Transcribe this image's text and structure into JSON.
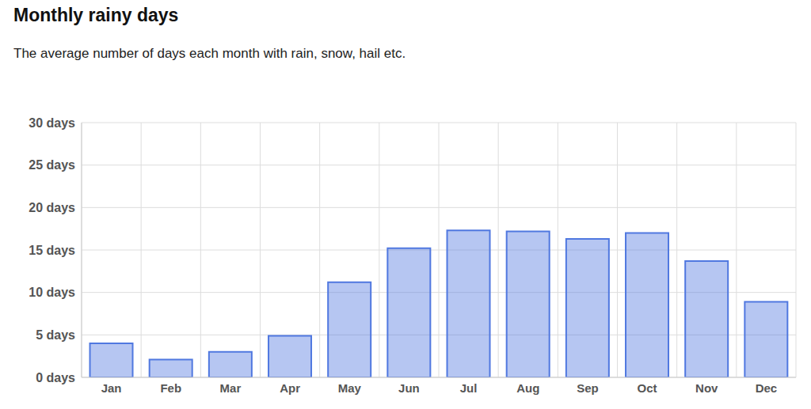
{
  "chart_data": {
    "type": "bar",
    "title": "Monthly rainy days",
    "subtitle": "The average number of days each month with rain, snow, hail etc.",
    "categories": [
      "Jan",
      "Feb",
      "Mar",
      "Apr",
      "May",
      "Jun",
      "Jul",
      "Aug",
      "Sep",
      "Oct",
      "Nov",
      "Dec"
    ],
    "values": [
      4.0,
      2.1,
      3.0,
      4.9,
      11.2,
      15.2,
      17.3,
      17.2,
      16.3,
      17.0,
      13.7,
      8.9
    ],
    "color": "#5078e0",
    "ylim": [
      0,
      30
    ],
    "yticks": [
      {
        "value": 0,
        "label": "0 days"
      },
      {
        "value": 5,
        "label": "5 days"
      },
      {
        "value": 10,
        "label": "10 days"
      },
      {
        "value": 15,
        "label": "15 days"
      },
      {
        "value": 20,
        "label": "20 days"
      },
      {
        "value": 25,
        "label": "25 days"
      },
      {
        "value": 30,
        "label": "30 days"
      }
    ],
    "grid": true
  }
}
